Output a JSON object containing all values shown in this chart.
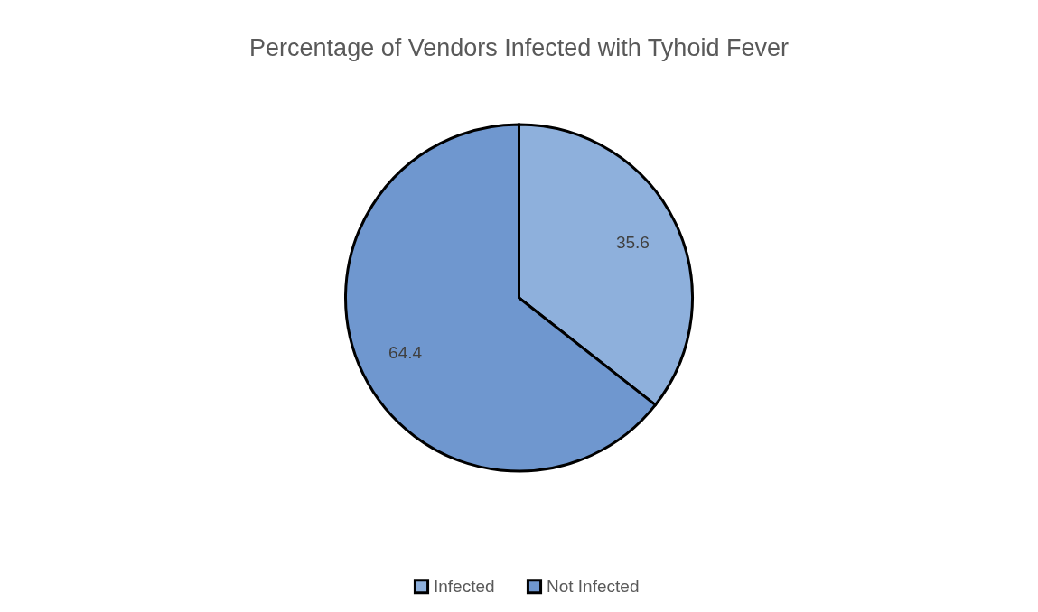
{
  "chart_data": {
    "type": "pie",
    "title": "Percentage of Vendors Infected with Tyhoid Fever",
    "categories": [
      "Infected",
      "Not Infected"
    ],
    "values": [
      35.6,
      64.4
    ],
    "colors": [
      "#8eb0dc",
      "#6f97cf"
    ],
    "data_labels": true,
    "legend": "bottom"
  }
}
